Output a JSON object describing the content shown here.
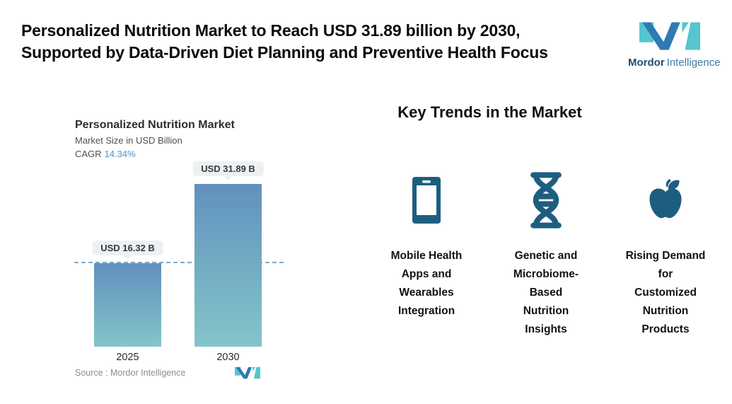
{
  "header": {
    "title_line1": "Personalized Nutrition Market to Reach USD 31.89 billion by 2030,",
    "title_line2": "Supported by Data-Driven Diet Planning and Preventive Health Focus",
    "logo": {
      "brand_bold": "Mordor",
      "brand_regular": "Intelligence"
    }
  },
  "chart": {
    "title": "Personalized Nutrition Market",
    "subtitle": "Market Size in USD Billion",
    "cagr_label": "CAGR",
    "cagr_value": "14.34%",
    "source": "Source :  Mordor Intelligence"
  },
  "chart_data": {
    "type": "bar",
    "title": "Personalized Nutrition Market",
    "ylabel": "Market Size in USD Billion",
    "unit": "USD Billion",
    "cagr_percent": 14.34,
    "categories": [
      "2025",
      "2030"
    ],
    "values": [
      16.32,
      31.89
    ],
    "value_labels": [
      "USD 16.32 B",
      "USD 31.89 B"
    ],
    "ylim": [
      0,
      32
    ],
    "grid": false,
    "legend": "none",
    "reference_line_value": 16.32,
    "bar_gradient_top": "#6191bd",
    "bar_gradient_bottom": "#84c5c9",
    "source": "Mordor Intelligence"
  },
  "trends": {
    "heading": "Key Trends in the Market",
    "items": [
      {
        "icon": "smartphone-icon",
        "label": "Mobile Health\nApps and\nWearables\nIntegration"
      },
      {
        "icon": "dna-icon",
        "label": "Genetic and\nMicrobiome-\nBased\nNutrition\nInsights"
      },
      {
        "icon": "apple-icon",
        "label": "Rising Demand\nfor\nCustomized\nNutrition\nProducts"
      }
    ]
  },
  "colors": {
    "accent_teal": "#56c5cd",
    "accent_blue": "#2d7ab4",
    "trend_icon": "#1d5e80",
    "dashed_line": "#7fa7cb",
    "cagr_blue": "#4e95cc",
    "callout_bg": "#edf1f1"
  }
}
